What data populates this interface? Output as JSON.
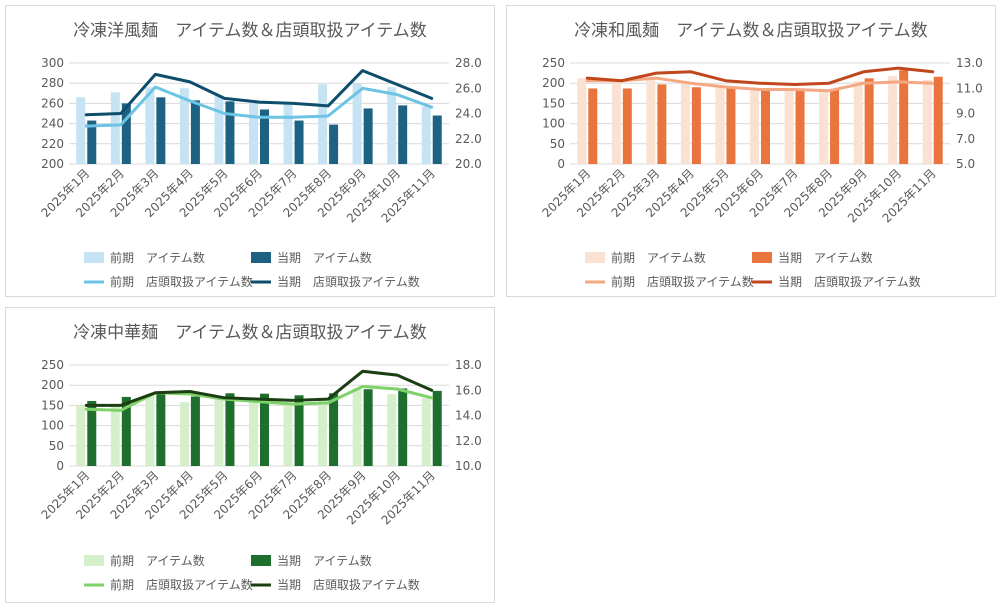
{
  "chart_data": [
    {
      "type": "bar+line",
      "title": "冷凍洋風麺　アイテム数＆店頭取扱アイテム数",
      "categories": [
        "2025年1月",
        "2025年2月",
        "2025年3月",
        "2025年4月",
        "2025年5月",
        "2025年6月",
        "2025年7月",
        "2025年8月",
        "2025年9月",
        "2025年10月",
        "2025年11月"
      ],
      "y_left": {
        "min": 200,
        "max": 300,
        "ticks": [
          "200",
          "220",
          "240",
          "260",
          "280",
          "300"
        ]
      },
      "y_right": {
        "min": 20,
        "max": 28,
        "ticks": [
          "20.0",
          "22.0",
          "24.0",
          "26.0",
          "28.0"
        ]
      },
      "colors": {
        "prev_bar": "#c5e3f3",
        "cur_bar": "#1d6283",
        "prev_line": "#6cc3e3",
        "cur_line": "#0e4d6b"
      },
      "series": [
        {
          "name": "前期　アイテム数",
          "kind": "bar",
          "axis": "left",
          "values": [
            266,
            271,
            276,
            275,
            268,
            262,
            260,
            279,
            280,
            276,
            257
          ]
        },
        {
          "name": "当期　アイテム数",
          "kind": "bar",
          "axis": "left",
          "values": [
            243,
            260,
            266,
            263,
            262,
            254,
            243,
            239,
            255,
            258,
            248
          ]
        },
        {
          "name": "前期　店頭取扱アイテム数",
          "kind": "line",
          "axis": "right",
          "values": [
            23.0,
            23.1,
            26.1,
            25.0,
            24.0,
            23.7,
            23.7,
            23.8,
            26.0,
            25.5,
            24.5
          ]
        },
        {
          "name": "当期　店頭取扱アイテム数",
          "kind": "line",
          "axis": "right",
          "values": [
            23.9,
            24.0,
            27.1,
            26.5,
            25.2,
            24.9,
            24.8,
            24.6,
            27.4,
            26.3,
            25.2
          ]
        }
      ]
    },
    {
      "type": "bar+line",
      "title": "冷凍和風麺　アイテム数＆店頭取扱アイテム数",
      "categories": [
        "2025年1月",
        "2025年2月",
        "2025年3月",
        "2025年4月",
        "2025年5月",
        "2025年6月",
        "2025年7月",
        "2025年8月",
        "2025年9月",
        "2025年10月",
        "2025年11月"
      ],
      "y_left": {
        "min": 0,
        "max": 250,
        "ticks": [
          "0",
          "50",
          "100",
          "150",
          "200",
          "250"
        ]
      },
      "y_right": {
        "min": 5,
        "max": 13,
        "ticks": [
          "5.0",
          "7.0",
          "9.0",
          "11.0",
          "13.0"
        ]
      },
      "colors": {
        "prev_bar": "#fbe1d2",
        "cur_bar": "#e9743d",
        "prev_line": "#f4a882",
        "cur_line": "#c0461c"
      },
      "series": [
        {
          "name": "前期　アイテム数",
          "kind": "bar",
          "axis": "left",
          "values": [
            212,
            205,
            210,
            200,
            192,
            184,
            184,
            180,
            205,
            218,
            208
          ]
        },
        {
          "name": "当期　アイテム数",
          "kind": "bar",
          "axis": "left",
          "values": [
            187,
            187,
            197,
            190,
            192,
            188,
            187,
            186,
            212,
            232,
            216
          ]
        },
        {
          "name": "前期　店頭取扱アイテム数",
          "kind": "line",
          "axis": "right",
          "values": [
            11.6,
            11.6,
            11.8,
            11.4,
            11.1,
            10.9,
            10.9,
            10.8,
            11.4,
            11.5,
            11.4
          ]
        },
        {
          "name": "当期　店頭取扱アイテム数",
          "kind": "line",
          "axis": "right",
          "values": [
            11.8,
            11.6,
            12.2,
            12.3,
            11.6,
            11.4,
            11.3,
            11.4,
            12.3,
            12.6,
            12.3
          ]
        }
      ]
    },
    {
      "type": "bar+line",
      "title": "冷凍中華麺　アイテム数＆店頭取扱アイテム数",
      "categories": [
        "2025年1月",
        "2025年2月",
        "2025年3月",
        "2025年4月",
        "2025年5月",
        "2025年6月",
        "2025年7月",
        "2025年8月",
        "2025年9月",
        "2025年10月",
        "2025年11月"
      ],
      "y_left": {
        "min": 0,
        "max": 250,
        "ticks": [
          "0",
          "50",
          "100",
          "150",
          "200",
          "250"
        ]
      },
      "y_right": {
        "min": 10,
        "max": 18,
        "ticks": [
          "10.0",
          "12.0",
          "14.0",
          "16.0",
          "18.0"
        ]
      },
      "colors": {
        "prev_bar": "#d6efcb",
        "cur_bar": "#1e6e2e",
        "prev_line": "#7fd26a",
        "cur_line": "#1b3f12"
      },
      "series": [
        {
          "name": "前期　アイテム数",
          "kind": "bar",
          "axis": "left",
          "values": [
            150,
            148,
            175,
            158,
            165,
            165,
            158,
            163,
            192,
            178,
            168
          ]
        },
        {
          "name": "当期　アイテム数",
          "kind": "bar",
          "axis": "left",
          "values": [
            161,
            171,
            180,
            172,
            180,
            179,
            175,
            180,
            190,
            192,
            186
          ]
        },
        {
          "name": "前期　店頭取扱アイテム数",
          "kind": "line",
          "axis": "right",
          "values": [
            14.5,
            14.4,
            15.8,
            15.7,
            15.3,
            15.1,
            14.9,
            15.0,
            16.3,
            16.1,
            15.4
          ]
        },
        {
          "name": "当期　店頭取扱アイテム数",
          "kind": "line",
          "axis": "right",
          "values": [
            14.8,
            14.8,
            15.8,
            15.9,
            15.4,
            15.3,
            15.2,
            15.3,
            17.5,
            17.2,
            16.0
          ]
        }
      ]
    }
  ]
}
